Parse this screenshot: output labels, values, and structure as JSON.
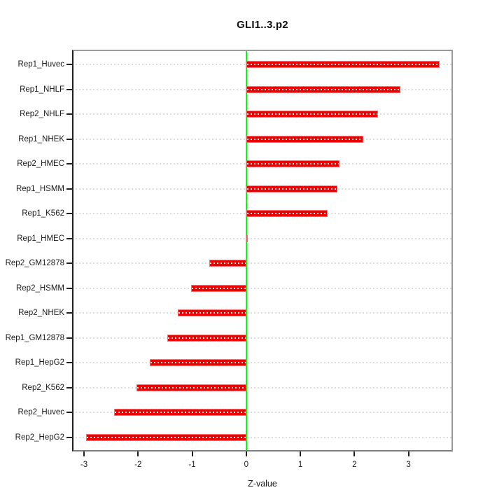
{
  "title": "GLI1..3.p2",
  "chart_data": {
    "type": "bar",
    "orientation": "horizontal",
    "title": "GLI1..3.p2",
    "xlabel": "Z-value",
    "ylabel": "",
    "categories": [
      "Rep1_Huvec",
      "Rep1_NHLF",
      "Rep2_NHLF",
      "Rep1_NHEK",
      "Rep2_HMEC",
      "Rep1_HSMM",
      "Rep1_K562",
      "Rep1_HMEC",
      "Rep2_GM12878",
      "Rep2_HSMM",
      "Rep2_NHEK",
      "Rep1_GM12878",
      "Rep1_HepG2",
      "Rep2_K562",
      "Rep2_Huvec",
      "Rep2_HepG2"
    ],
    "values": [
      3.57,
      2.85,
      2.43,
      2.16,
      1.73,
      1.69,
      1.5,
      0.02,
      -0.68,
      -1.02,
      -1.27,
      -1.46,
      -1.79,
      -2.03,
      -2.44,
      -2.96
    ],
    "xlim": [
      -3.22,
      3.82
    ],
    "x_ticks": [
      -3,
      -2,
      -1,
      0,
      1,
      2,
      3
    ],
    "zero_reference_line": 0,
    "grid": true,
    "legend": null
  },
  "colors": {
    "bar_fill": "#ee0000",
    "bar_edge": "#ff6b6b",
    "zero_line": "#00ff00",
    "gridline": "#dcdcdc",
    "box_border": "#9a9a9a",
    "axis_text": "#1a1a1a",
    "background": "#ffffff"
  }
}
